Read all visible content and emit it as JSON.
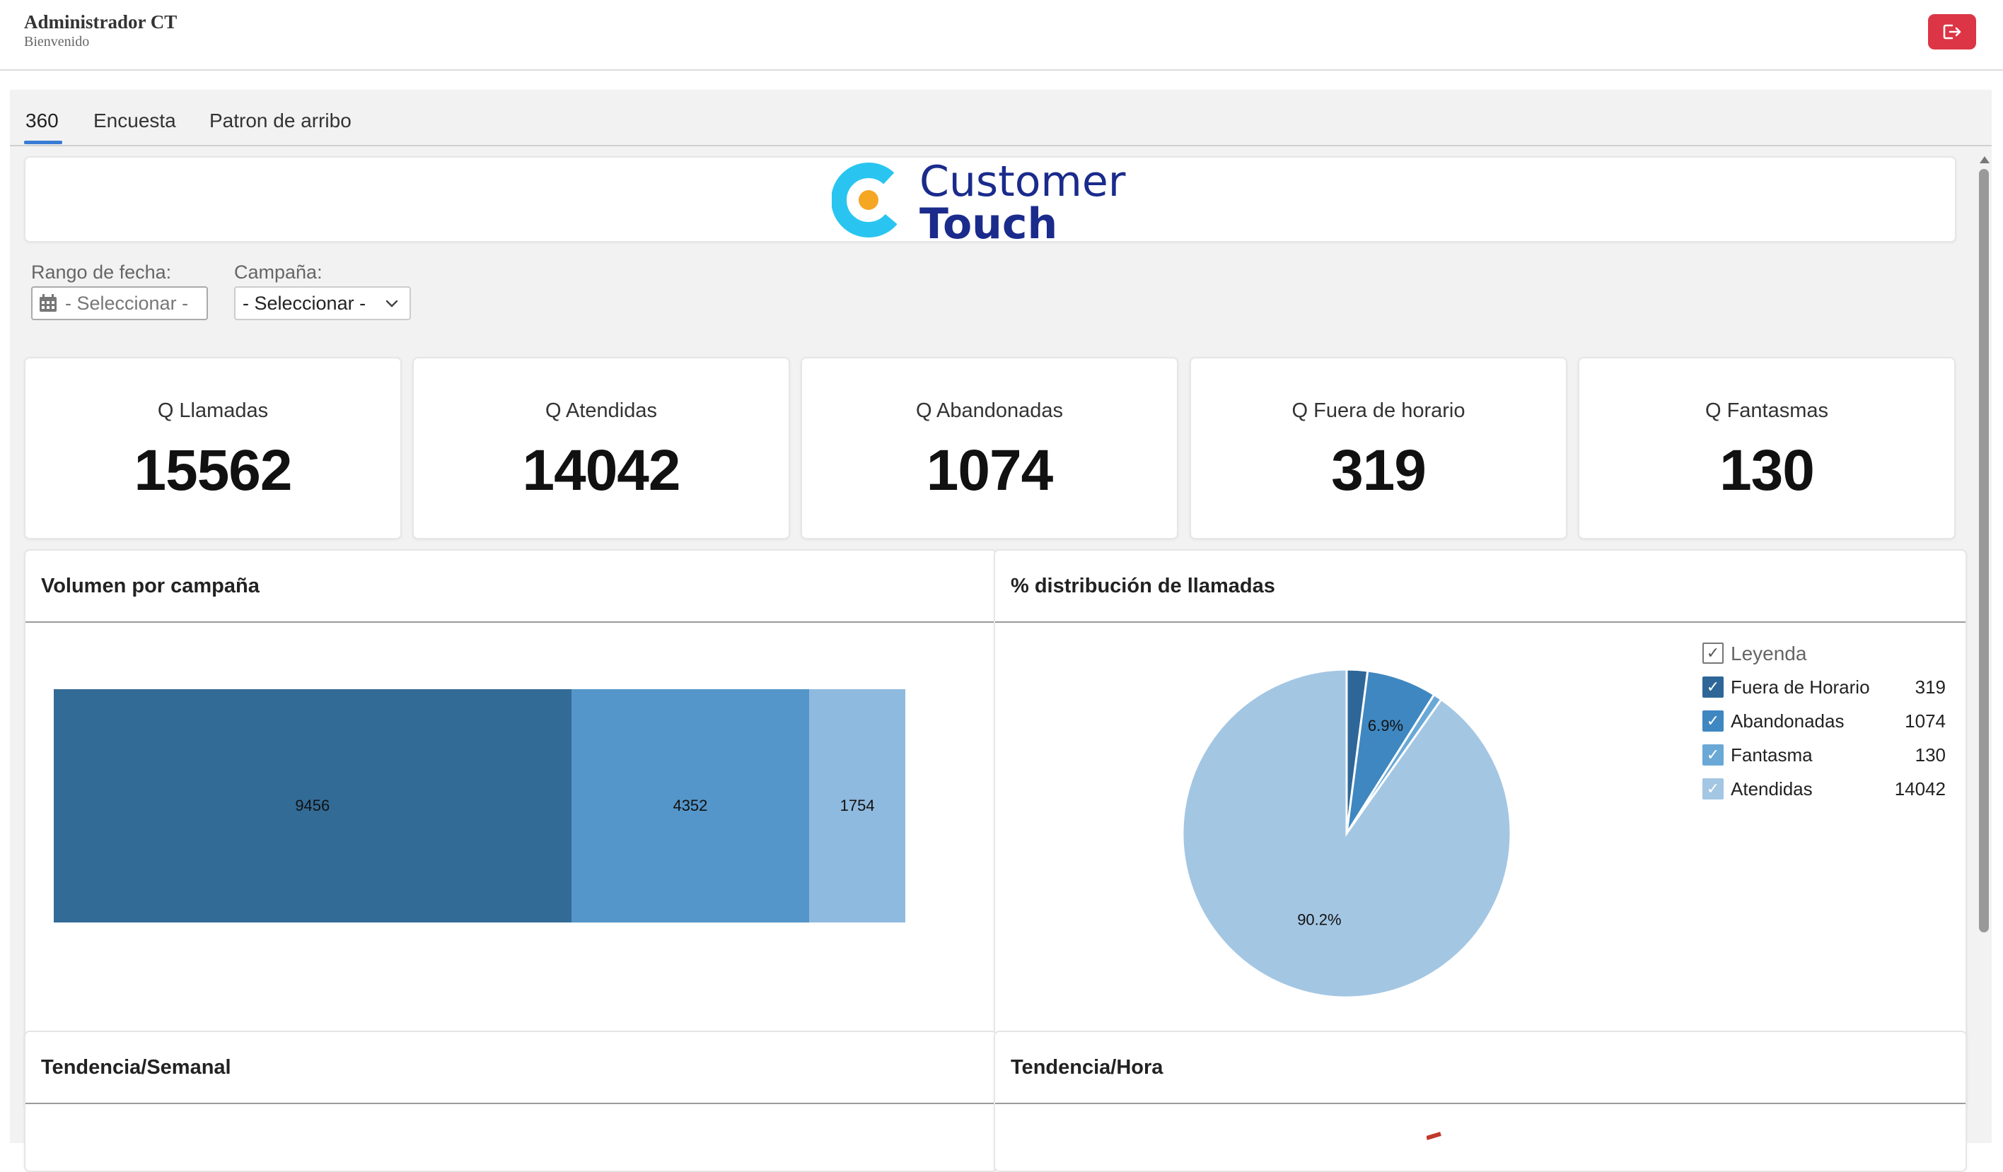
{
  "header": {
    "user_name": "Administrador CT",
    "greeting": "Bienvenido"
  },
  "tabs": [
    {
      "label": "360",
      "active": true
    },
    {
      "label": "Encuesta",
      "active": false
    },
    {
      "label": "Patron de arribo",
      "active": false
    }
  ],
  "brand": {
    "line1": "Customer",
    "line2": "Touch",
    "primary_color": "#1a2b8c",
    "accent_color": "#29c5f0",
    "dot_color": "#f5a623"
  },
  "filters": {
    "date_label": "Rango de fecha:",
    "date_placeholder": "- Seleccionar -",
    "campaign_label": "Campaña:",
    "campaign_value": "- Seleccionar -"
  },
  "kpis": [
    {
      "label": "Q Llamadas",
      "value": "15562"
    },
    {
      "label": "Q Atendidas",
      "value": "14042"
    },
    {
      "label": "Q Abandonadas",
      "value": "1074"
    },
    {
      "label": "Q Fuera de horario",
      "value": "319"
    },
    {
      "label": "Q Fantasmas",
      "value": "130"
    }
  ],
  "panels": {
    "volume_title": "Volumen por campaña",
    "distribution_title": "% distribución de llamadas",
    "weekly_title": "Tendencia/Semanal",
    "hourly_title": "Tendencia/Hora"
  },
  "legend": {
    "title": "Leyenda",
    "items": [
      {
        "label": "Fuera de Horario",
        "value": "319",
        "color": "#2e6797"
      },
      {
        "label": "Abandonadas",
        "value": "1074",
        "color": "#3f87c0"
      },
      {
        "label": "Fantasma",
        "value": "130",
        "color": "#6aa8d6"
      },
      {
        "label": "Atendidas",
        "value": "14042",
        "color": "#a3c6e3"
      }
    ]
  },
  "chart_data": [
    {
      "type": "bar",
      "orientation": "horizontal-stacked",
      "categories": [
        "Volumen"
      ],
      "series": [
        {
          "values": [
            9456
          ],
          "color": "#336b97"
        },
        {
          "values": [
            4352
          ],
          "color": "#5496c9"
        },
        {
          "values": [
            1754
          ],
          "color": "#8fbadf"
        }
      ],
      "data_labels": [
        "9456",
        "4352",
        "1754"
      ]
    },
    {
      "type": "pie",
      "slices": [
        {
          "label": "Fuera de Horario",
          "value": 319,
          "color": "#2e6797"
        },
        {
          "label": "Abandonadas",
          "value": 1074,
          "color": "#3f87c0"
        },
        {
          "label": "Fantasma",
          "value": 130,
          "color": "#6aa8d6"
        },
        {
          "label": "Atendidas",
          "value": 14042,
          "color": "#a3c6e3"
        }
      ],
      "data_labels": [
        {
          "slice": "Abandonadas",
          "text": "6.9%"
        },
        {
          "slice": "Atendidas",
          "text": "90.2%"
        }
      ]
    }
  ]
}
